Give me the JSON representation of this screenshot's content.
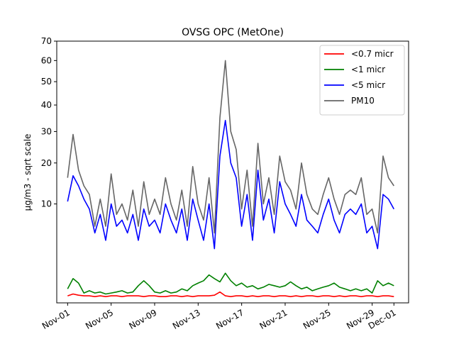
{
  "chart_data": {
    "type": "line",
    "title": "OVSG OPC (MetOne)",
    "xlabel": "",
    "ylabel": "µg/m3 - sqrt scale",
    "y_scale": "sqrt",
    "ylim": [
      0,
      70
    ],
    "y_ticks": [
      {
        "value": 10,
        "label": "10"
      },
      {
        "value": 20,
        "label": "20"
      },
      {
        "value": 30,
        "label": "30"
      },
      {
        "value": 40,
        "label": "40"
      },
      {
        "value": 50,
        "label": "50"
      },
      {
        "value": 60,
        "label": "60"
      },
      {
        "value": 70,
        "label": "70"
      }
    ],
    "xlim": [
      0,
      32.35
    ],
    "x_ticks": [
      {
        "value": 1,
        "label": "Nov-01"
      },
      {
        "value": 5,
        "label": "Nov-05"
      },
      {
        "value": 9,
        "label": "Nov-09"
      },
      {
        "value": 13,
        "label": "Nov-13"
      },
      {
        "value": 17,
        "label": "Nov-17"
      },
      {
        "value": 21,
        "label": "Nov-21"
      },
      {
        "value": 25,
        "label": "Nov-25"
      },
      {
        "value": 29,
        "label": "Nov-29"
      },
      {
        "value": 31,
        "label": "Dec-01"
      }
    ],
    "grid": false,
    "legend_position": "top-right",
    "x": [
      1.0,
      1.5,
      2.0,
      2.5,
      3.0,
      3.5,
      4.0,
      4.5,
      5.0,
      5.5,
      6.0,
      6.5,
      7.0,
      7.5,
      8.0,
      8.5,
      9.0,
      9.5,
      10.0,
      10.5,
      11.0,
      11.5,
      12.0,
      12.5,
      13.0,
      13.5,
      14.0,
      14.5,
      15.0,
      15.5,
      16.0,
      16.5,
      17.0,
      17.5,
      18.0,
      18.5,
      19.0,
      19.5,
      20.0,
      20.5,
      21.0,
      21.5,
      22.0,
      22.5,
      23.0,
      23.5,
      24.0,
      24.5,
      25.0,
      25.5,
      26.0,
      26.5,
      27.0,
      27.5,
      28.0,
      28.5,
      29.0,
      29.5,
      30.0,
      30.5,
      31.0
    ],
    "series": [
      {
        "name": "<0.7 micr",
        "color": "#ff0000",
        "values": [
          0.05,
          0.08,
          0.06,
          0.05,
          0.05,
          0.04,
          0.05,
          0.04,
          0.05,
          0.05,
          0.04,
          0.05,
          0.05,
          0.05,
          0.04,
          0.05,
          0.05,
          0.04,
          0.04,
          0.05,
          0.05,
          0.04,
          0.05,
          0.04,
          0.05,
          0.05,
          0.05,
          0.06,
          0.12,
          0.05,
          0.04,
          0.05,
          0.05,
          0.04,
          0.05,
          0.04,
          0.05,
          0.05,
          0.04,
          0.05,
          0.05,
          0.04,
          0.05,
          0.04,
          0.05,
          0.05,
          0.04,
          0.05,
          0.05,
          0.04,
          0.05,
          0.04,
          0.05,
          0.05,
          0.04,
          0.05,
          0.05,
          0.04,
          0.05,
          0.05,
          0.04
        ]
      },
      {
        "name": "<1 micr",
        "color": "#008000",
        "values": [
          0.2,
          0.6,
          0.4,
          0.1,
          0.15,
          0.1,
          0.12,
          0.08,
          0.1,
          0.12,
          0.15,
          0.1,
          0.12,
          0.3,
          0.5,
          0.3,
          0.12,
          0.1,
          0.15,
          0.1,
          0.12,
          0.2,
          0.15,
          0.3,
          0.4,
          0.5,
          0.8,
          0.6,
          0.45,
          0.9,
          0.5,
          0.3,
          0.4,
          0.25,
          0.3,
          0.2,
          0.25,
          0.35,
          0.3,
          0.25,
          0.3,
          0.45,
          0.3,
          0.2,
          0.25,
          0.15,
          0.2,
          0.25,
          0.3,
          0.4,
          0.25,
          0.2,
          0.15,
          0.2,
          0.15,
          0.2,
          0.1,
          0.5,
          0.3,
          0.4,
          0.3
        ]
      },
      {
        "name": "<5 micr",
        "color": "#0000ff",
        "values": [
          10.5,
          16.5,
          14,
          11,
          9,
          5,
          8,
          4,
          10,
          6,
          7,
          5,
          8,
          4,
          9,
          6,
          7,
          5,
          10,
          7,
          5,
          9,
          4,
          11,
          7,
          4,
          10,
          3,
          22,
          34,
          20,
          16,
          6,
          12,
          4,
          18,
          7,
          11,
          5,
          15,
          10,
          8,
          6,
          12,
          7,
          6,
          5,
          8,
          11,
          7,
          5,
          8,
          9,
          8,
          10,
          5,
          6,
          3,
          12,
          11,
          9
        ]
      },
      {
        "name": "PM10",
        "color": "#666666",
        "values": [
          16,
          29,
          18,
          14,
          12,
          6,
          11,
          6,
          17,
          8,
          10,
          7,
          13,
          6,
          15,
          8,
          11,
          8,
          16,
          10,
          7,
          13,
          6,
          19,
          10,
          7,
          16,
          5,
          35,
          60,
          30,
          24,
          9,
          18,
          6,
          26,
          10,
          16,
          8,
          22,
          15,
          13,
          9,
          20,
          12,
          9,
          8,
          12,
          16,
          11,
          8,
          12,
          13,
          12,
          16,
          8,
          9,
          5,
          22,
          16,
          14
        ]
      }
    ]
  }
}
